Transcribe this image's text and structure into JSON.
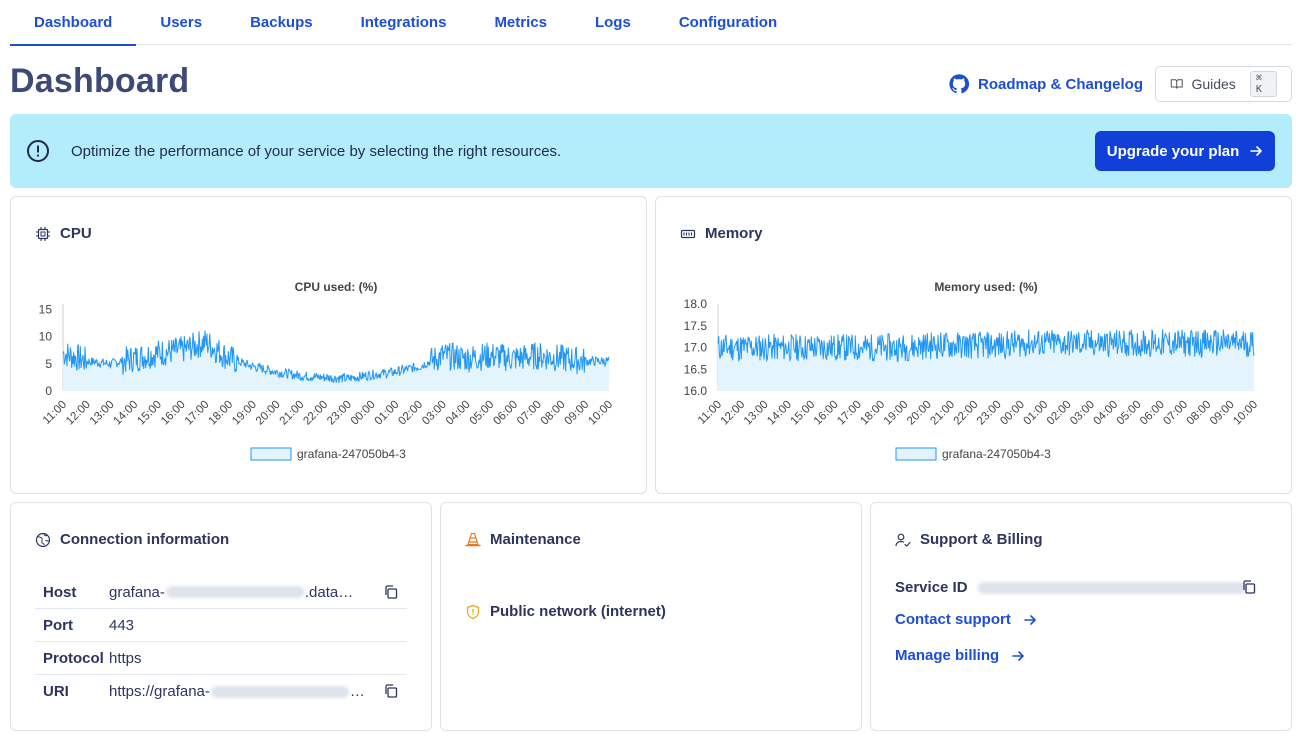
{
  "tabs": [
    {
      "label": "Dashboard",
      "active": true
    },
    {
      "label": "Users"
    },
    {
      "label": "Backups"
    },
    {
      "label": "Integrations"
    },
    {
      "label": "Metrics"
    },
    {
      "label": "Logs"
    },
    {
      "label": "Configuration"
    }
  ],
  "header": {
    "title": "Dashboard",
    "roadmap_label": "Roadmap & Changelog",
    "guides_label": "Guides",
    "guides_shortcut": "⌘ K"
  },
  "banner": {
    "text": "Optimize the performance of your service by selecting the right resources.",
    "button_label": "Upgrade your plan",
    "background": "#b3ecfb",
    "button_color": "#1040d8"
  },
  "cpu_card": {
    "title": "CPU"
  },
  "memory_card": {
    "title": "Memory"
  },
  "chart_data": [
    {
      "type": "area",
      "title": "CPU used: (%)",
      "xlabel": "",
      "ylabel": "",
      "x": [
        "11:00",
        "12:00",
        "13:00",
        "14:00",
        "15:00",
        "16:00",
        "17:00",
        "18:00",
        "19:00",
        "20:00",
        "21:00",
        "22:00",
        "23:00",
        "00:00",
        "01:00",
        "02:00",
        "03:00",
        "04:00",
        "05:00",
        "06:00",
        "07:00",
        "08:00",
        "09:00",
        "10:00"
      ],
      "yticks": [
        0,
        5,
        10,
        15
      ],
      "ylim": [
        0,
        16
      ],
      "series": [
        {
          "name": "grafana-247050b4-3",
          "values": [
            7,
            5.5,
            5,
            6,
            7,
            7.5,
            9,
            6,
            4.5,
            3.5,
            2.8,
            2.5,
            2.3,
            3,
            3.5,
            4.5,
            6.5,
            6,
            6.5,
            6,
            6.5,
            6,
            5.5,
            5.5
          ]
        }
      ],
      "color": "#2196f3",
      "fill": "#e3f4fd",
      "legend": "bottom"
    },
    {
      "type": "area",
      "title": "Memory used: (%)",
      "xlabel": "",
      "ylabel": "",
      "x": [
        "11:00",
        "12:00",
        "13:00",
        "14:00",
        "15:00",
        "16:00",
        "17:00",
        "18:00",
        "19:00",
        "20:00",
        "21:00",
        "22:00",
        "23:00",
        "00:00",
        "01:00",
        "02:00",
        "03:00",
        "04:00",
        "05:00",
        "06:00",
        "07:00",
        "08:00",
        "09:00",
        "10:00"
      ],
      "yticks": [
        16.0,
        16.5,
        17.0,
        17.5,
        18.0
      ],
      "ylim": [
        16.0,
        18.0
      ],
      "series": [
        {
          "name": "grafana-247050b4-3",
          "values": [
            17.0,
            17.0,
            17.0,
            17.0,
            17.0,
            17.0,
            17.0,
            17.0,
            17.0,
            17.05,
            17.05,
            17.05,
            17.05,
            17.1,
            17.1,
            17.1,
            17.1,
            17.1,
            17.1,
            17.1,
            17.1,
            17.1,
            17.1,
            17.1
          ]
        }
      ],
      "color": "#2196f3",
      "fill": "#e3f4fd",
      "legend": "bottom"
    }
  ],
  "connection": {
    "title": "Connection information",
    "rows": [
      {
        "key": "Host",
        "prefix": "grafana-",
        "suffix": ".data…"
      },
      {
        "key": "Port",
        "value": "443"
      },
      {
        "key": "Protocol",
        "value": "https"
      },
      {
        "key": "URI",
        "prefix": "https://grafana-",
        "suffix": "…"
      }
    ]
  },
  "maintenance": {
    "title": "Maintenance",
    "network_label": "Public network (internet)"
  },
  "support": {
    "title": "Support & Billing",
    "service_id_label": "Service ID",
    "contact_label": "Contact support",
    "billing_label": "Manage billing"
  }
}
